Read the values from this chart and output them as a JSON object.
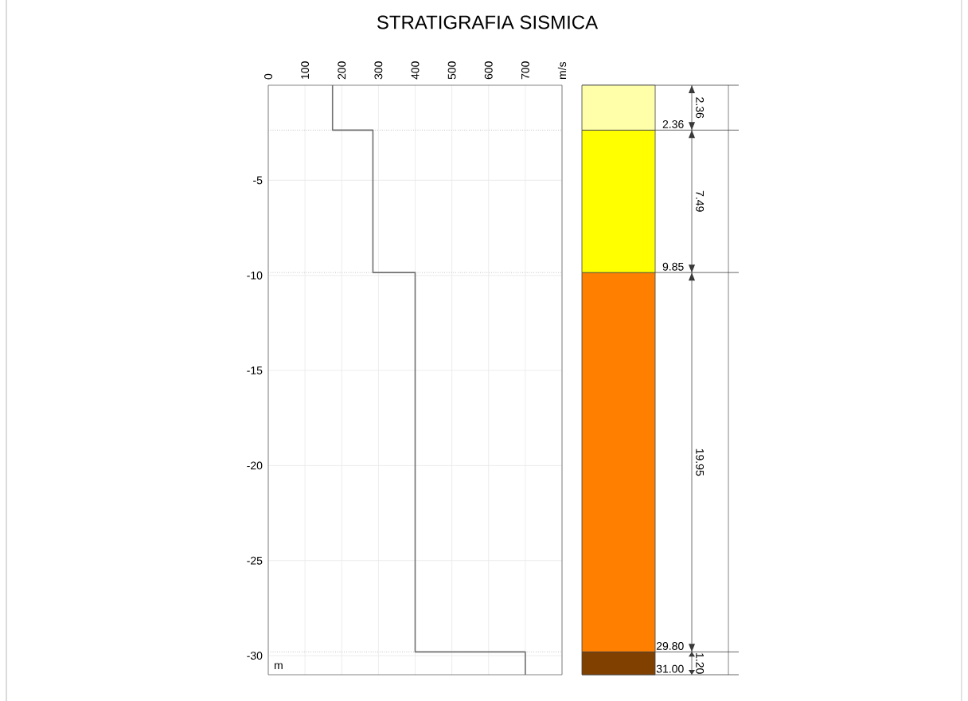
{
  "chart_data": [
    {
      "type": "line",
      "title": "STRATIGRAFIA SISMICA",
      "ylabel": "m",
      "x": [
        175,
        175,
        285,
        285,
        400,
        400,
        700,
        700
      ],
      "values": [
        0,
        -2.36,
        -2.36,
        -9.85,
        -9.85,
        -29.8,
        -29.8,
        -31
      ],
      "color": "#707070",
      "xlim": [
        0,
        800
      ],
      "ylim": [
        -31,
        0
      ],
      "xticks": [
        0,
        100,
        200,
        300,
        400,
        500,
        600,
        700,
        {
          "value": 800,
          "label": "m/s"
        }
      ],
      "yticks": [
        -30,
        -25,
        -20,
        -15,
        -10,
        -5
      ],
      "grid": true,
      "ref_lines": [
        {
          "axis": "y",
          "value": -2.36,
          "color": "#a0a0a0",
          "line_style": "dotted"
        },
        {
          "axis": "y",
          "value": -9.85,
          "color": "#a0a0a0",
          "line_style": "dotted"
        },
        {
          "axis": "y",
          "value": -29.8,
          "color": "#a0a0a0",
          "line_style": "dotted"
        }
      ]
    },
    {
      "type": "bar",
      "stacked": true,
      "categories": [
        null
      ],
      "ylim": [
        -31,
        0
      ],
      "series": [
        {
          "color": "#ffffaa",
          "values": [
            -2.36
          ]
        },
        {
          "color": "#ffff00",
          "values": [
            -7.49
          ]
        },
        {
          "color": "#ff8000",
          "values": [
            -19.95
          ]
        },
        {
          "color": "#804000",
          "values": [
            -1.2
          ]
        }
      ],
      "annotations": [
        "2.36",
        "9.85",
        "29.80",
        "31.00",
        "2.36",
        "7.49",
        "19.95",
        "1.20"
      ],
      "ref_lines": [
        {
          "axis": "y",
          "value": 0,
          "color": "#404040"
        },
        {
          "axis": "y",
          "value": -2.36,
          "color": "#404040"
        },
        {
          "axis": "y",
          "value": -9.85,
          "color": "#404040"
        },
        {
          "axis": "y",
          "value": -29.8,
          "color": "#404040"
        },
        {
          "axis": "y",
          "value": -31,
          "color": "#404040"
        }
      ]
    }
  ]
}
